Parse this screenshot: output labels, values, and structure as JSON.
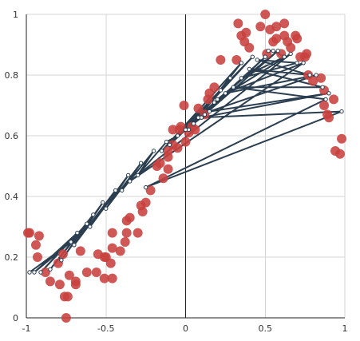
{
  "chart_data": {
    "type": "scatter",
    "title": "",
    "xlabel": "",
    "ylabel": "",
    "xlim": [
      -1,
      1
    ],
    "ylim": [
      0,
      1
    ],
    "grid": true,
    "x_ticks": [
      -1,
      -0.5,
      0,
      0.5,
      1
    ],
    "x_tick_labels": [
      "-1",
      "-0.5",
      "0",
      "0.5",
      "1"
    ],
    "y_ticks": [
      0,
      0.2,
      0.4,
      0.6,
      0.8,
      1
    ],
    "y_tick_labels": [
      "0",
      "0.2",
      "0.4",
      "0.6",
      "0.8",
      "1"
    ],
    "colors": {
      "points": "#c8413f",
      "curve": "#2b3e50",
      "marker_fill": "#ffffff",
      "grid": "#d4d4d4",
      "axis": "#222222"
    },
    "series": [
      {
        "type": "scatter",
        "points": [
          [
            -0.99,
            0.28
          ],
          [
            -0.98,
            0.28
          ],
          [
            -0.94,
            0.24
          ],
          [
            -0.92,
            0.27
          ],
          [
            -0.93,
            0.2
          ],
          [
            -0.88,
            0.15
          ],
          [
            -0.85,
            0.12
          ],
          [
            -0.79,
            0.11
          ],
          [
            -0.8,
            0.18
          ],
          [
            -0.77,
            0.21
          ],
          [
            -0.76,
            0.07
          ],
          [
            -0.74,
            0.07
          ],
          [
            -0.75,
            0.0
          ],
          [
            -0.73,
            0.14
          ],
          [
            -0.69,
            0.11
          ],
          [
            -0.69,
            0.12
          ],
          [
            -0.66,
            0.22
          ],
          [
            -0.62,
            0.15
          ],
          [
            -0.56,
            0.15
          ],
          [
            -0.55,
            0.21
          ],
          [
            -0.51,
            0.13
          ],
          [
            -0.51,
            0.2
          ],
          [
            -0.5,
            0.2
          ],
          [
            -0.46,
            0.13
          ],
          [
            -0.47,
            0.18
          ],
          [
            -0.46,
            0.23
          ],
          [
            -0.46,
            0.28
          ],
          [
            -0.41,
            0.22
          ],
          [
            -0.38,
            0.25
          ],
          [
            -0.37,
            0.32
          ],
          [
            -0.37,
            0.28
          ],
          [
            -0.35,
            0.33
          ],
          [
            -0.3,
            0.28
          ],
          [
            -0.27,
            0.35
          ],
          [
            -0.28,
            0.37
          ],
          [
            -0.25,
            0.38
          ],
          [
            -0.22,
            0.42
          ],
          [
            -0.18,
            0.5
          ],
          [
            -0.16,
            0.51
          ],
          [
            -0.14,
            0.46
          ],
          [
            -0.11,
            0.49
          ],
          [
            -0.11,
            0.53
          ],
          [
            -0.11,
            0.55
          ],
          [
            -0.08,
            0.57
          ],
          [
            -0.08,
            0.62
          ],
          [
            -0.05,
            0.56
          ],
          [
            -0.04,
            0.62
          ],
          [
            -0.03,
            0.63
          ],
          [
            -0.01,
            0.7
          ],
          [
            0.0,
            0.58
          ],
          [
            0.02,
            0.61
          ],
          [
            0.04,
            0.63
          ],
          [
            0.06,
            0.62
          ],
          [
            0.08,
            0.69
          ],
          [
            0.12,
            0.67
          ],
          [
            0.14,
            0.72
          ],
          [
            0.15,
            0.74
          ],
          [
            0.18,
            0.76
          ],
          [
            0.22,
            0.85
          ],
          [
            0.32,
            0.85
          ],
          [
            0.33,
            0.97
          ],
          [
            0.35,
            0.93
          ],
          [
            0.37,
            0.91
          ],
          [
            0.38,
            0.94
          ],
          [
            0.4,
            0.89
          ],
          [
            0.47,
            0.96
          ],
          [
            0.5,
            1.0
          ],
          [
            0.51,
            0.87
          ],
          [
            0.53,
            0.95
          ],
          [
            0.55,
            0.91
          ],
          [
            0.57,
            0.92
          ],
          [
            0.57,
            0.96
          ],
          [
            0.6,
            0.87
          ],
          [
            0.62,
            0.97
          ],
          [
            0.62,
            0.93
          ],
          [
            0.64,
            0.91
          ],
          [
            0.66,
            0.89
          ],
          [
            0.69,
            0.93
          ],
          [
            0.7,
            0.92
          ],
          [
            0.72,
            0.86
          ],
          [
            0.75,
            0.86
          ],
          [
            0.76,
            0.87
          ],
          [
            0.77,
            0.8
          ],
          [
            0.8,
            0.78
          ],
          [
            0.85,
            0.79
          ],
          [
            0.87,
            0.75
          ],
          [
            0.87,
            0.7
          ],
          [
            0.89,
            0.67
          ],
          [
            0.9,
            0.66
          ],
          [
            0.93,
            0.72
          ],
          [
            0.94,
            0.55
          ],
          [
            0.97,
            0.54
          ],
          [
            0.98,
            0.59
          ]
        ]
      },
      {
        "type": "line",
        "xs": [
          -0.98,
          -0.72,
          -0.95,
          -0.68,
          -0.91,
          -0.62,
          -0.85,
          -0.58,
          -0.78,
          -0.52,
          -0.7,
          -0.44,
          -0.6,
          -0.36,
          -0.5,
          -0.28,
          -0.4,
          -0.2,
          -0.3,
          -0.12,
          -0.05,
          0.1,
          0.05,
          0.18,
          -0.1,
          0.22,
          0.02,
          0.28,
          0.08,
          0.35,
          -0.15,
          0.42,
          0.0,
          0.5,
          0.12,
          0.58,
          0.2,
          0.66,
          -0.35,
          0.74,
          0.25,
          0.82,
          0.15,
          0.9,
          0.1,
          0.98,
          -0.25,
          0.88,
          0.3,
          0.86,
          0.4,
          0.78,
          0.45,
          0.7,
          0.35,
          0.62,
          0.55,
          0.52
        ],
        "ys": [
          0.15,
          0.25,
          0.15,
          0.28,
          0.15,
          0.31,
          0.16,
          0.34,
          0.19,
          0.38,
          0.24,
          0.42,
          0.3,
          0.47,
          0.36,
          0.51,
          0.42,
          0.55,
          0.47,
          0.58,
          0.6,
          0.66,
          0.64,
          0.71,
          0.57,
          0.75,
          0.62,
          0.79,
          0.66,
          0.84,
          0.55,
          0.86,
          0.62,
          0.86,
          0.67,
          0.88,
          0.72,
          0.87,
          0.45,
          0.84,
          0.74,
          0.8,
          0.68,
          0.74,
          0.66,
          0.68,
          0.43,
          0.72,
          0.76,
          0.76,
          0.82,
          0.8,
          0.85,
          0.84,
          0.79,
          0.86,
          0.88,
          0.88
        ]
      }
    ]
  }
}
